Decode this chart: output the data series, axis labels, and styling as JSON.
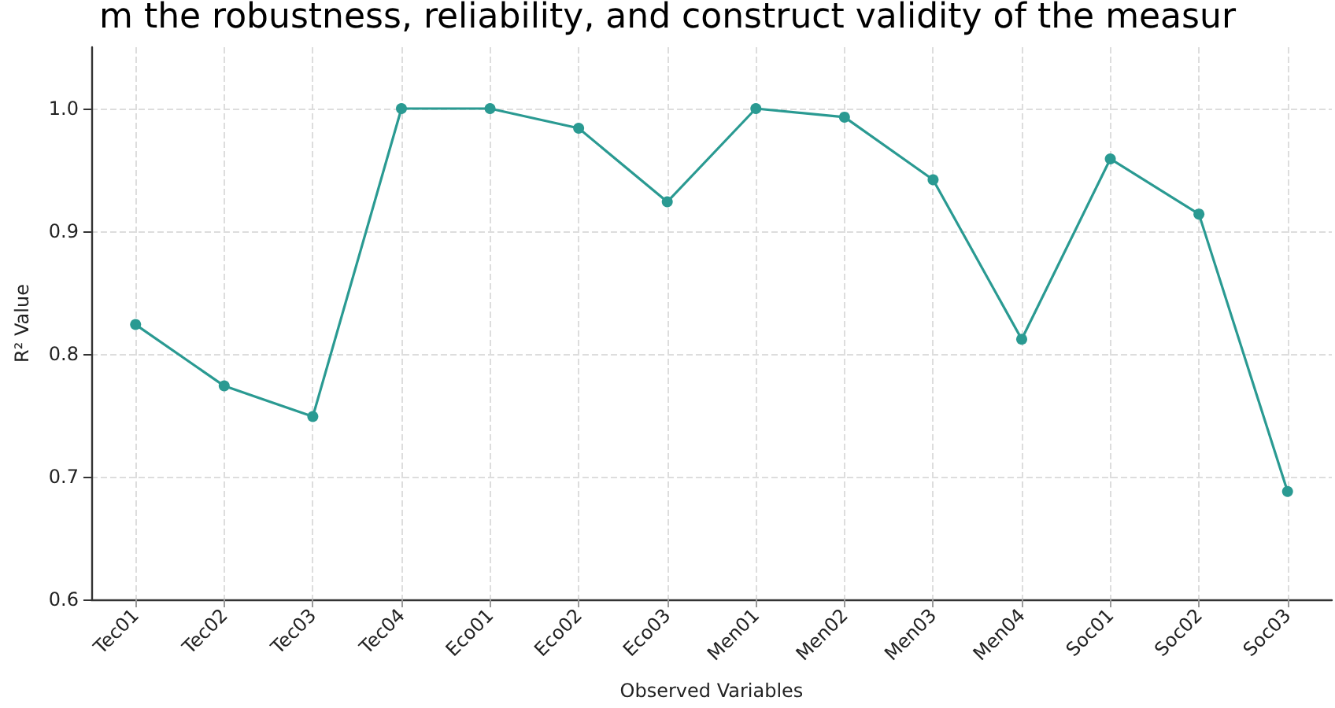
{
  "chart_data": {
    "type": "line",
    "annotations": [
      "m the robustness, reliability, and construct validity of the measur"
    ],
    "xlabel": "Observed Variables",
    "ylabel": "R² Value",
    "categories": [
      "Tec01",
      "Tec02",
      "Tec03",
      "Tec04",
      "Eco01",
      "Eco02",
      "Eco03",
      "Men01",
      "Men02",
      "Men03",
      "Men04",
      "Soc01",
      "Soc02",
      "Soc03"
    ],
    "series": [
      {
        "color": "#2a9a92",
        "values": [
          0.824,
          0.774,
          0.749,
          1.0,
          1.0,
          0.984,
          0.924,
          1.0,
          0.993,
          0.942,
          0.812,
          0.959,
          0.914,
          0.688
        ]
      }
    ],
    "ylim": [
      0.6,
      1.05
    ],
    "yticks": [
      {
        "value": 0.6,
        "label": "0.6"
      },
      {
        "value": 0.7,
        "label": "0.7"
      },
      {
        "value": 0.8,
        "label": "0.8"
      },
      {
        "value": 0.9,
        "label": "0.9"
      },
      {
        "value": 1.0,
        "label": "1.0"
      }
    ],
    "grid": true,
    "marker": "circle",
    "line_style": "solid"
  }
}
